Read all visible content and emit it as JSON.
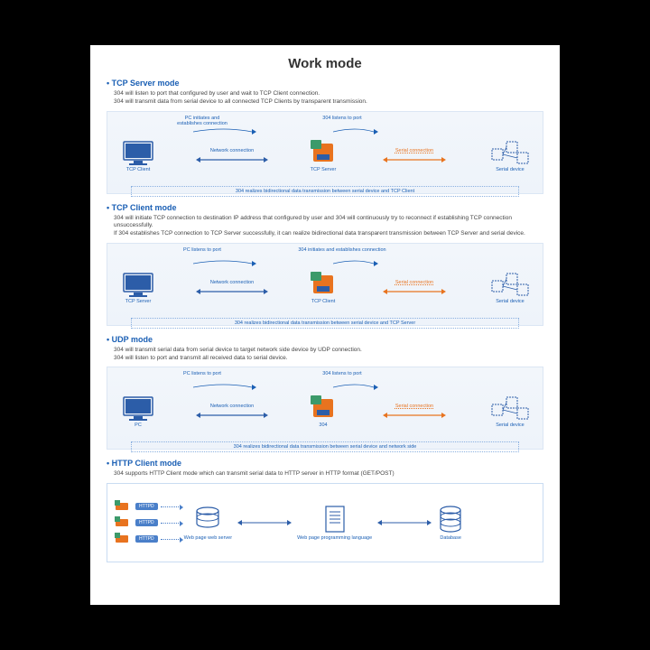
{
  "title": "Work mode",
  "colors": {
    "blue": "#1a5fb4",
    "orange": "#e8731f",
    "diagram_bg_top": "#f2f6fb",
    "diagram_bg_bottom": "#eef3fa",
    "diagram_border": "#dbe6f4",
    "device_blue": "#2c5da8",
    "device_green": "#3c9a6a",
    "device_orange": "#e8731f",
    "httpd_bg": "#4a7fc9"
  },
  "sections": [
    {
      "title": "TCP Server mode",
      "desc": "304 will listen to port that configured by user and wait to TCP Client connection.\n304 will transmit data from serial device to all connected TCP Clients by transparent transmission.",
      "top_left": "PC initiates and\nestablishes connection",
      "top_right": "304 listens to port",
      "left_node": "TCP Client",
      "mid_node": "TCP Server",
      "right_node": "Serial device",
      "arrow1": "Network connection",
      "arrow2": "Serial connection",
      "footer": "304 realizes bidirectional data transmission between serial device and TCP Client"
    },
    {
      "title": "TCP Client mode",
      "desc": "304 will initiate TCP connection to destination IP address that configured by user and 304 will continuously try to reconnect if establishing TCP connection unsuccessfully.\nIf 304 establishes TCP connection to TCP Server successfully, it can realize bidirectional data transparent transmission between TCP Server and serial device.",
      "top_left": "PC listens to port",
      "top_right": "304 initiates and establishes connection",
      "left_node": "TCP Server",
      "mid_node": "TCP Client",
      "right_node": "Serial device",
      "arrow1": "Network connection",
      "arrow2": "Serial connection",
      "footer": "304 realizes bidirectional data transmission between serial device and TCP Server"
    },
    {
      "title": "UDP mode",
      "desc": "304 will transmit serial data from serial device to target network side device by UDP connection.\n304 will listen to port and transmit all received data to serial device.",
      "top_left": "PC listens to port",
      "top_right": "304 listens to port",
      "left_node": "PC",
      "mid_node": "304",
      "right_node": "Serial device",
      "arrow1": "Network connection",
      "arrow2": "Serial connection",
      "footer": "304 realizes bidirectional data transmission between serial device and network side"
    }
  ],
  "http": {
    "title": "HTTP Client mode",
    "desc": "304 supports HTTP Client mode which can transmit serial data to HTTP server in HTTP format (GET/POST)",
    "httpd_label": "HTTPD",
    "node1": "Web page web server",
    "node2": "Web page programming language",
    "node3": "Database"
  }
}
